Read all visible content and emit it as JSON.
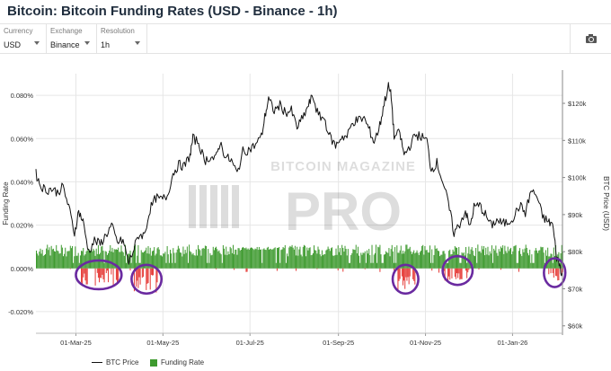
{
  "title": "Bitcoin: Bitcoin Funding Rates (USD - Binance - 1h)",
  "controls": {
    "currency": {
      "label": "Currency",
      "value": "USD"
    },
    "exchange": {
      "label": "Exchange",
      "value": "Binance"
    },
    "resolution": {
      "label": "Resolution",
      "value": "1h"
    }
  },
  "icons": {
    "screenshot": "camera-icon"
  },
  "watermark": {
    "line1": "BITCOIN MAGAZINE",
    "line2": "PRO"
  },
  "legend": {
    "btc_price": "BTC Price",
    "funding_rate": "Funding Rate"
  },
  "colors": {
    "price": "#111111",
    "funding_positive": "#3e9a2f",
    "funding_negative": "#e53935",
    "highlight_ellipse": "#6a2aa0",
    "grid": "#e6e6e6"
  },
  "chart_data": {
    "type": "line",
    "x_ticks": [
      "01-Mar-25",
      "01-May-25",
      "01-Jul-25",
      "01-Sep-25",
      "01-Nov-25",
      "01-Jan-26"
    ],
    "x_range": [
      "2025-02-01",
      "2026-02-05"
    ],
    "left_axis": {
      "label": "Funding Rate",
      "range": [
        -0.0003,
        0.0009
      ],
      "ticks": [
        -0.0002,
        0.0,
        0.0002,
        0.0004,
        0.0006,
        0.0008
      ],
      "tick_labels": [
        "-0.020%",
        "0.000%",
        "0.020%",
        "0.040%",
        "0.060%",
        "0.080%"
      ]
    },
    "right_axis": {
      "label": "BTC Price (USD)",
      "range": [
        58000,
        128000
      ],
      "ticks": [
        60000,
        70000,
        80000,
        90000,
        100000,
        110000,
        120000
      ],
      "tick_labels": [
        "$60k",
        "$70k",
        "$80k",
        "$90k",
        "$100k",
        "$110k",
        "$120k"
      ]
    },
    "grid": true,
    "legend_position": "bottom",
    "series": [
      {
        "name": "BTC Price",
        "axis": "right",
        "points": [
          [
            "2025-02-01",
            101000
          ],
          [
            "2025-02-04",
            98000
          ],
          [
            "2025-02-08",
            96500
          ],
          [
            "2025-02-12",
            97000
          ],
          [
            "2025-02-16",
            96000
          ],
          [
            "2025-02-20",
            97500
          ],
          [
            "2025-02-24",
            92000
          ],
          [
            "2025-02-28",
            85000
          ],
          [
            "2025-03-03",
            91000
          ],
          [
            "2025-03-06",
            88000
          ],
          [
            "2025-03-10",
            80000
          ],
          [
            "2025-03-14",
            83000
          ],
          [
            "2025-03-18",
            82000
          ],
          [
            "2025-03-22",
            84500
          ],
          [
            "2025-03-26",
            87000
          ],
          [
            "2025-03-30",
            82500
          ],
          [
            "2025-04-03",
            83000
          ],
          [
            "2025-04-07",
            77000
          ],
          [
            "2025-04-10",
            80000
          ],
          [
            "2025-04-14",
            84500
          ],
          [
            "2025-04-18",
            84500
          ],
          [
            "2025-04-22",
            91500
          ],
          [
            "2025-04-26",
            94500
          ],
          [
            "2025-04-30",
            94000
          ],
          [
            "2025-05-04",
            95000
          ],
          [
            "2025-05-08",
            101000
          ],
          [
            "2025-05-12",
            103500
          ],
          [
            "2025-05-16",
            103000
          ],
          [
            "2025-05-20",
            106000
          ],
          [
            "2025-05-22",
            110500
          ],
          [
            "2025-05-26",
            109500
          ],
          [
            "2025-05-30",
            104500
          ],
          [
            "2025-06-03",
            105500
          ],
          [
            "2025-06-07",
            105000
          ],
          [
            "2025-06-10",
            109500
          ],
          [
            "2025-06-14",
            105500
          ],
          [
            "2025-06-18",
            104500
          ],
          [
            "2025-06-22",
            101000
          ],
          [
            "2025-06-26",
            107000
          ],
          [
            "2025-06-30",
            107500
          ],
          [
            "2025-07-04",
            108500
          ],
          [
            "2025-07-09",
            111000
          ],
          [
            "2025-07-12",
            117500
          ],
          [
            "2025-07-14",
            121000
          ],
          [
            "2025-07-18",
            118000
          ],
          [
            "2025-07-22",
            119500
          ],
          [
            "2025-07-26",
            117500
          ],
          [
            "2025-07-30",
            118000
          ],
          [
            "2025-08-03",
            113500
          ],
          [
            "2025-08-07",
            116000
          ],
          [
            "2025-08-11",
            119500
          ],
          [
            "2025-08-14",
            122000
          ],
          [
            "2025-08-18",
            116500
          ],
          [
            "2025-08-22",
            116000
          ],
          [
            "2025-08-26",
            111000
          ],
          [
            "2025-08-30",
            108500
          ],
          [
            "2025-09-03",
            111000
          ],
          [
            "2025-09-07",
            111000
          ],
          [
            "2025-09-11",
            115000
          ],
          [
            "2025-09-15",
            115500
          ],
          [
            "2025-09-19",
            116000
          ],
          [
            "2025-09-23",
            112500
          ],
          [
            "2025-09-26",
            109500
          ],
          [
            "2025-09-30",
            114000
          ],
          [
            "2025-10-03",
            120000
          ],
          [
            "2025-10-06",
            124500
          ],
          [
            "2025-10-08",
            122000
          ],
          [
            "2025-10-10",
            111000
          ],
          [
            "2025-10-14",
            112000
          ],
          [
            "2025-10-17",
            106000
          ],
          [
            "2025-10-21",
            108500
          ],
          [
            "2025-10-25",
            111500
          ],
          [
            "2025-10-29",
            111000
          ],
          [
            "2025-11-02",
            110000
          ],
          [
            "2025-11-05",
            102000
          ],
          [
            "2025-11-09",
            104000
          ],
          [
            "2025-11-13",
            99000
          ],
          [
            "2025-11-17",
            93000
          ],
          [
            "2025-11-21",
            85000
          ],
          [
            "2025-11-25",
            87500
          ],
          [
            "2025-11-29",
            91000
          ],
          [
            "2025-12-02",
            86500
          ],
          [
            "2025-12-05",
            92000
          ],
          [
            "2025-12-09",
            92500
          ],
          [
            "2025-12-13",
            90000
          ],
          [
            "2025-12-17",
            87000
          ],
          [
            "2025-12-21",
            88500
          ],
          [
            "2025-12-25",
            87500
          ],
          [
            "2025-12-29",
            88000
          ],
          [
            "2026-01-02",
            89500
          ],
          [
            "2026-01-06",
            92500
          ],
          [
            "2026-01-10",
            90500
          ],
          [
            "2026-01-14",
            96500
          ],
          [
            "2026-01-18",
            95000
          ],
          [
            "2026-01-22",
            89500
          ],
          [
            "2026-01-26",
            88000
          ],
          [
            "2026-01-29",
            87500
          ],
          [
            "2026-02-01",
            78500
          ],
          [
            "2026-02-03",
            76500
          ],
          [
            "2026-02-05",
            73500
          ]
        ]
      },
      {
        "name": "Funding Rate",
        "axis": "left",
        "type": "bar",
        "baseline": 0.0001,
        "negative_episodes": [
          {
            "start": "2025-03-04",
            "end": "2025-03-31",
            "min": -8e-05
          },
          {
            "start": "2025-04-10",
            "end": "2025-04-28",
            "min": -0.00012
          },
          {
            "start": "2025-10-11",
            "end": "2025-10-25",
            "min": -0.00011
          },
          {
            "start": "2025-11-14",
            "end": "2025-12-02",
            "min": -6e-05
          },
          {
            "start": "2026-01-26",
            "end": "2026-02-05",
            "min": -6e-05
          }
        ]
      }
    ],
    "annotations": [
      {
        "type": "ellipse",
        "start": "2025-03-01",
        "end": "2025-04-02",
        "center_y": -3e-05
      },
      {
        "type": "ellipse",
        "start": "2025-04-09",
        "end": "2025-04-30",
        "center_y": -5e-05
      },
      {
        "type": "ellipse",
        "start": "2025-10-09",
        "end": "2025-10-27",
        "center_y": -5e-05
      },
      {
        "type": "ellipse",
        "start": "2025-11-13",
        "end": "2025-12-04",
        "center_y": -1e-05
      },
      {
        "type": "ellipse",
        "start": "2026-01-23",
        "end": "2026-02-07",
        "center_y": -2e-05
      }
    ]
  }
}
